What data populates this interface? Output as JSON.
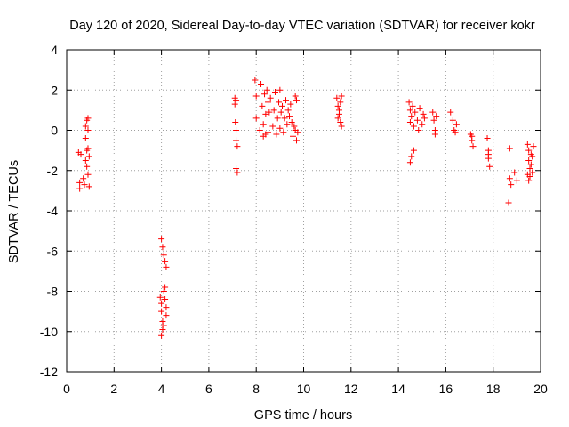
{
  "chart_data": {
    "type": "scatter",
    "title": "Day 120 of 2020, Sidereal Day-to-day VTEC variation (SDTVAR) for receiver kokr",
    "xlabel": "GPS time / hours",
    "ylabel": "SDTVAR / TECUs",
    "xlim": [
      0,
      20
    ],
    "ylim": [
      -12,
      4
    ],
    "xticks": [
      0,
      2,
      4,
      6,
      8,
      10,
      12,
      14,
      16,
      18,
      20
    ],
    "yticks": [
      -12,
      -10,
      -8,
      -6,
      -4,
      -2,
      0,
      2,
      4
    ],
    "grid": true,
    "marker": "+",
    "color": "#ff0000",
    "series": [
      {
        "name": "SDTVAR",
        "points": [
          [
            0.5,
            -1.1
          ],
          [
            0.55,
            -2.6
          ],
          [
            0.55,
            -2.9
          ],
          [
            0.6,
            -1.2
          ],
          [
            0.7,
            -2.4
          ],
          [
            0.75,
            -2.7
          ],
          [
            0.8,
            0.2
          ],
          [
            0.8,
            -0.4
          ],
          [
            0.8,
            -1.5
          ],
          [
            0.85,
            0.5
          ],
          [
            0.85,
            -1.0
          ],
          [
            0.85,
            -1.8
          ],
          [
            0.9,
            0.6
          ],
          [
            0.9,
            0.0
          ],
          [
            0.9,
            -0.9
          ],
          [
            0.9,
            -2.2
          ],
          [
            0.95,
            -1.3
          ],
          [
            0.95,
            -2.8
          ],
          [
            4.0,
            -5.4
          ],
          [
            4.05,
            -5.8
          ],
          [
            4.1,
            -6.2
          ],
          [
            4.15,
            -6.5
          ],
          [
            4.2,
            -6.8
          ],
          [
            3.95,
            -8.3
          ],
          [
            4.0,
            -8.6
          ],
          [
            4.0,
            -9.0
          ],
          [
            4.05,
            -9.5
          ],
          [
            4.05,
            -9.9
          ],
          [
            4.0,
            -10.2
          ],
          [
            4.1,
            -8.0
          ],
          [
            4.15,
            -7.8
          ],
          [
            4.15,
            -8.4
          ],
          [
            4.2,
            -8.8
          ],
          [
            4.2,
            -9.2
          ],
          [
            4.1,
            -9.7
          ],
          [
            7.1,
            1.6
          ],
          [
            7.1,
            1.3
          ],
          [
            7.12,
            0.4
          ],
          [
            7.15,
            0.0
          ],
          [
            7.15,
            -0.5
          ],
          [
            7.2,
            -0.8
          ],
          [
            7.15,
            -1.9
          ],
          [
            7.2,
            -2.1
          ],
          [
            7.15,
            1.5
          ],
          [
            7.95,
            2.5
          ],
          [
            8.0,
            1.7
          ],
          [
            8.0,
            0.6
          ],
          [
            8.2,
            2.3
          ],
          [
            8.25,
            1.2
          ],
          [
            8.3,
            0.3
          ],
          [
            8.3,
            -0.3
          ],
          [
            8.35,
            1.8
          ],
          [
            8.4,
            0.8
          ],
          [
            8.45,
            2.0
          ],
          [
            8.5,
            1.4
          ],
          [
            8.5,
            -0.1
          ],
          [
            8.55,
            0.9
          ],
          [
            8.6,
            1.6
          ],
          [
            8.7,
            0.2
          ],
          [
            8.75,
            1.0
          ],
          [
            8.8,
            1.9
          ],
          [
            8.85,
            -0.2
          ],
          [
            8.9,
            0.6
          ],
          [
            8.95,
            1.4
          ],
          [
            9.0,
            0.1
          ],
          [
            9.0,
            2.0
          ],
          [
            9.05,
            0.9
          ],
          [
            9.1,
            1.2
          ],
          [
            9.15,
            -0.1
          ],
          [
            9.2,
            0.6
          ],
          [
            9.25,
            1.5
          ],
          [
            9.3,
            0.3
          ],
          [
            9.35,
            1.0
          ],
          [
            9.4,
            0.7
          ],
          [
            9.45,
            1.3
          ],
          [
            9.5,
            0.4
          ],
          [
            9.55,
            -0.3
          ],
          [
            9.6,
            0.2
          ],
          [
            9.65,
            1.7
          ],
          [
            9.7,
            1.5
          ],
          [
            9.7,
            -0.5
          ],
          [
            9.75,
            -0.1
          ],
          [
            9.65,
            0.0
          ],
          [
            8.15,
            0.0
          ],
          [
            8.4,
            -0.2
          ],
          [
            11.4,
            1.6
          ],
          [
            11.45,
            1.2
          ],
          [
            11.5,
            0.8
          ],
          [
            11.55,
            0.4
          ],
          [
            11.6,
            1.7
          ],
          [
            11.5,
            1.0
          ],
          [
            11.45,
            0.6
          ],
          [
            11.6,
            0.2
          ],
          [
            11.55,
            1.4
          ],
          [
            14.45,
            1.4
          ],
          [
            14.5,
            1.0
          ],
          [
            14.5,
            0.4
          ],
          [
            14.55,
            0.7
          ],
          [
            14.6,
            1.2
          ],
          [
            14.65,
            0.2
          ],
          [
            14.7,
            0.9
          ],
          [
            14.8,
            0.5
          ],
          [
            14.9,
            1.1
          ],
          [
            15.0,
            0.3
          ],
          [
            15.05,
            0.8
          ],
          [
            14.55,
            -1.3
          ],
          [
            14.5,
            -1.6
          ],
          [
            14.65,
            -1.0
          ],
          [
            15.1,
            0.6
          ],
          [
            14.85,
            0.0
          ],
          [
            15.45,
            0.9
          ],
          [
            15.5,
            0.5
          ],
          [
            15.55,
            0.0
          ],
          [
            15.6,
            0.7
          ],
          [
            15.55,
            -0.2
          ],
          [
            16.2,
            0.9
          ],
          [
            16.3,
            0.5
          ],
          [
            16.35,
            0.0
          ],
          [
            16.4,
            -0.1
          ],
          [
            16.45,
            0.3
          ],
          [
            17.05,
            -0.2
          ],
          [
            17.1,
            -0.5
          ],
          [
            17.15,
            -0.8
          ],
          [
            17.1,
            -0.3
          ],
          [
            17.75,
            -0.4
          ],
          [
            17.8,
            -1.0
          ],
          [
            17.8,
            -1.4
          ],
          [
            17.85,
            -1.8
          ],
          [
            17.8,
            -1.2
          ],
          [
            18.7,
            -0.9
          ],
          [
            18.7,
            -2.4
          ],
          [
            18.75,
            -2.7
          ],
          [
            18.65,
            -3.6
          ],
          [
            18.9,
            -2.1
          ],
          [
            19.0,
            -2.5
          ],
          [
            19.45,
            -0.7
          ],
          [
            19.5,
            -1.0
          ],
          [
            19.5,
            -1.5
          ],
          [
            19.55,
            -1.9
          ],
          [
            19.55,
            -2.3
          ],
          [
            19.5,
            -2.5
          ],
          [
            19.45,
            -2.2
          ],
          [
            19.6,
            -1.2
          ],
          [
            19.6,
            -1.7
          ],
          [
            19.65,
            -2.1
          ],
          [
            19.7,
            -0.8
          ],
          [
            19.65,
            -1.3
          ]
        ]
      }
    ]
  }
}
